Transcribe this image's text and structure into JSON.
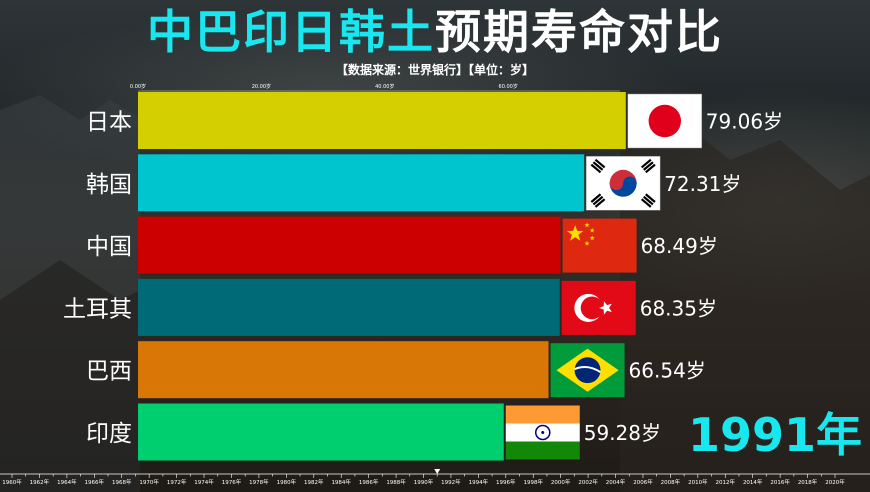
{
  "title": {
    "highlight": "中巴印日韩土",
    "rest": "预期寿命对比"
  },
  "subtitle": "【数据来源：世界银行】【单位：岁】",
  "year_label": "1991年",
  "chart_data": {
    "type": "bar",
    "orientation": "horizontal",
    "unit_suffix": "岁",
    "categories": [
      "日本",
      "韩国",
      "中国",
      "土耳其",
      "巴西",
      "印度"
    ],
    "values": [
      79.06,
      72.31,
      68.49,
      68.35,
      66.54,
      59.28
    ],
    "value_labels": [
      "79.06岁",
      "72.31岁",
      "68.49岁",
      "68.35岁",
      "66.54岁",
      "59.28岁"
    ],
    "colors": [
      "#d4cf00",
      "#00c5cf",
      "#cc0000",
      "#006b77",
      "#d97706",
      "#00cf70"
    ],
    "flags": [
      "japan-flag",
      "south-korea-flag",
      "china-flag",
      "turkey-flag",
      "brazil-flag",
      "india-flag"
    ],
    "top_axis": {
      "ticks": [
        0,
        20,
        40,
        60
      ],
      "tick_labels": [
        "0.00岁",
        "20.00岁",
        "40.00岁",
        "60.00岁"
      ],
      "range": [
        0,
        80
      ]
    },
    "timeline": {
      "start": 1960,
      "end": 2020,
      "step": 2,
      "labels": [
        "1960年",
        "1962年",
        "1964年",
        "1966年",
        "1968年",
        "1970年",
        "1972年",
        "1974年",
        "1976年",
        "1978年",
        "1980年",
        "1982年",
        "1984年",
        "1986年",
        "1988年",
        "1990年",
        "1992年",
        "1994年",
        "1996年",
        "1998年",
        "2000年",
        "2002年",
        "2004年",
        "2006年",
        "2008年",
        "2010年",
        "2012年",
        "2014年",
        "2016年",
        "2018年",
        "2020年"
      ],
      "current": 1991
    }
  }
}
